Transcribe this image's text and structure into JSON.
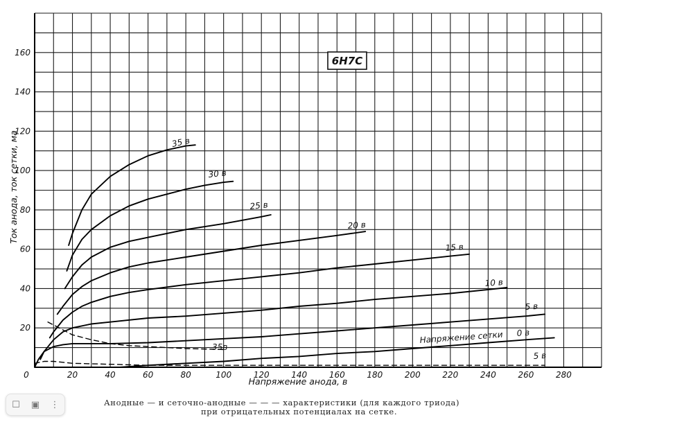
{
  "chart_data": {
    "type": "line",
    "title": "6Н7С",
    "xlabel": "Напряжение анода, в",
    "ylabel": "Ток анода, ток сетки, ма",
    "xlim": [
      0,
      300
    ],
    "ylim": [
      0,
      180
    ],
    "x_ticks": [
      "0",
      "20",
      "40",
      "60",
      "80",
      "100",
      "120",
      "140",
      "160",
      "180",
      "200",
      "220",
      "240",
      "260",
      "280"
    ],
    "y_ticks": [
      "20",
      "40",
      "60",
      "80",
      "100",
      "120",
      "140",
      "160"
    ],
    "grid": true,
    "series": [
      {
        "name": "35 в",
        "style": "solid",
        "x": [
          18,
          20,
          25,
          30,
          40,
          50,
          60,
          70,
          80,
          85
        ],
        "y": [
          62,
          68,
          80,
          88,
          97,
          103,
          107.5,
          110.5,
          112.5,
          113
        ]
      },
      {
        "name": "30 в",
        "style": "solid",
        "x": [
          17,
          20,
          25,
          30,
          40,
          50,
          60,
          70,
          80,
          90,
          100,
          105
        ],
        "y": [
          49,
          57,
          65,
          70,
          77,
          82,
          85.5,
          88,
          90.5,
          92.5,
          94,
          94.5
        ]
      },
      {
        "name": "25 в",
        "style": "solid",
        "x": [
          16,
          20,
          25,
          30,
          40,
          50,
          60,
          80,
          100,
          120,
          125
        ],
        "y": [
          40,
          46,
          52,
          56,
          61,
          64,
          66,
          70,
          73,
          76.5,
          77.5
        ]
      },
      {
        "name": "20 в",
        "style": "solid",
        "x": [
          12,
          15,
          20,
          25,
          30,
          40,
          50,
          60,
          80,
          100,
          120,
          140,
          160,
          175
        ],
        "y": [
          27,
          31,
          37,
          41,
          44,
          48,
          51,
          53,
          56,
          59,
          62,
          64.5,
          67,
          69
        ]
      },
      {
        "name": "15 в",
        "style": "solid",
        "x": [
          8,
          10,
          15,
          20,
          25,
          30,
          40,
          50,
          60,
          80,
          100,
          120,
          140,
          160,
          180,
          200,
          220,
          230
        ],
        "y": [
          15,
          18,
          24,
          28,
          31,
          33,
          36,
          38,
          39.5,
          42,
          44,
          46,
          48,
          50.5,
          52.5,
          54.5,
          56.5,
          57.5
        ]
      },
      {
        "name": "10 в",
        "style": "solid",
        "x": [
          3,
          5,
          10,
          15,
          20,
          30,
          40,
          60,
          80,
          100,
          120,
          140,
          160,
          180,
          200,
          220,
          240,
          250
        ],
        "y": [
          4,
          8,
          14,
          18,
          20,
          22,
          23,
          25,
          26,
          27.5,
          29,
          31,
          32.5,
          34.5,
          36,
          37.5,
          39.5,
          40.5
        ]
      },
      {
        "name": "5 в",
        "style": "solid",
        "x": [
          0,
          2,
          5,
          10,
          15,
          20,
          30,
          40,
          60,
          80,
          100,
          120,
          140,
          160,
          180,
          200,
          220,
          240,
          260,
          270
        ],
        "y": [
          0,
          4,
          8,
          10.5,
          11.5,
          12,
          12,
          12,
          12.5,
          13.5,
          14.5,
          15.5,
          17,
          18.5,
          20,
          21.5,
          23,
          24.5,
          26,
          27
        ]
      },
      {
        "name": "0 в",
        "style": "solid",
        "x": [
          45,
          60,
          80,
          100,
          120,
          140,
          160,
          180,
          200,
          220,
          240,
          260,
          275
        ],
        "y": [
          0,
          1,
          2,
          3,
          4.5,
          5.5,
          7,
          8,
          9.5,
          11,
          12.5,
          14,
          15
        ]
      },
      {
        "name": "Напряжение сетки",
        "style": "label-only",
        "x": [],
        "y": []
      },
      {
        "name": "35 в",
        "style": "dashed",
        "x": [
          7,
          15,
          20,
          30,
          40,
          50,
          60,
          70,
          80,
          100
        ],
        "y": [
          23,
          19,
          16.5,
          14,
          12,
          11,
          10.5,
          10,
          9.5,
          9
        ]
      },
      {
        "name": "5 в",
        "style": "dashed",
        "x": [
          0,
          5,
          10,
          20,
          40,
          60,
          100,
          150,
          200,
          250,
          270
        ],
        "y": [
          2,
          3,
          3,
          2,
          1.5,
          1,
          1,
          1,
          1,
          1,
          1
        ]
      }
    ],
    "labels": {
      "s35": "35 в",
      "s30": "30 в",
      "s25": "25 в",
      "s20": "20 в",
      "s15": "15 в",
      "s10": "10 в",
      "s5": "5 в",
      "s0": "0 в",
      "grid_voltage": "Напряжение сетки",
      "dashed35": "35в",
      "dashed5": "5 в"
    }
  },
  "caption": {
    "line1": "Анодные — и сеточно-анодные — — — характеристики (для каждого триода)",
    "line2": "при отрицательных потенциалах на сетке."
  },
  "toolbar": {
    "bookmark_icon": "bookmark-icon",
    "camera_icon": "camera-icon",
    "more_icon": "more-icon"
  }
}
